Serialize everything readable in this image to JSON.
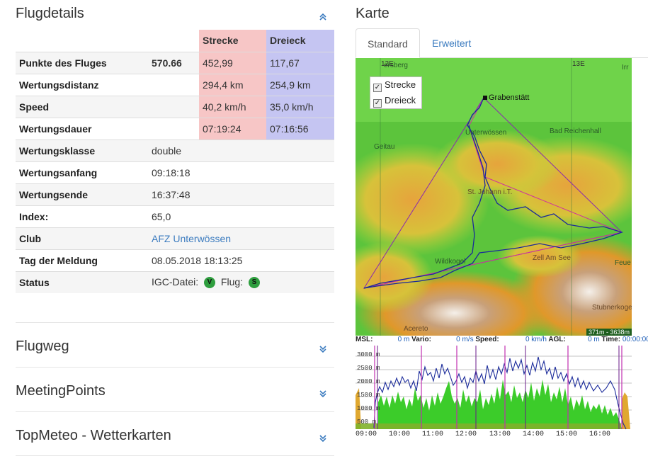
{
  "left": {
    "title": "Flugdetails",
    "table_header": {
      "strecke": "Strecke",
      "dreieck": "Dreieck"
    },
    "rows": [
      {
        "label": "Punkte des Fluges",
        "value": "570.66",
        "strecke": "452,99",
        "dreieck": "117,67"
      },
      {
        "label": "Wertungsdistanz",
        "value": "",
        "strecke": "294,4 km",
        "dreieck": "254,9 km"
      },
      {
        "label": "Speed",
        "value": "",
        "strecke": "40,2 km/h",
        "dreieck": "35,0 km/h"
      },
      {
        "label": "Wertungsdauer",
        "value": "",
        "strecke": "07:19:24",
        "dreieck": "07:16:56"
      }
    ],
    "info": [
      {
        "label": "Wertungsklasse",
        "value": "double"
      },
      {
        "label": "Wertungsanfang",
        "value": "09:18:18"
      },
      {
        "label": "Wertungsende",
        "value": "16:37:48"
      },
      {
        "label": "Index:",
        "value": "65,0"
      },
      {
        "label": "Club",
        "value": "AFZ Unterwössen"
      },
      {
        "label": "Tag der Meldung",
        "value": "08.05.2018 18:13:25"
      }
    ],
    "status": {
      "label": "Status",
      "igc_label": "IGC-Datei:",
      "igc_badge": "V",
      "flug_label": "Flug:",
      "flug_badge": "S"
    },
    "sections": [
      "Flugweg",
      "MeetingPoints",
      "TopMeteo - Wetterkarten"
    ]
  },
  "right": {
    "title": "Karte",
    "tabs": [
      "Standard",
      "Erweitert"
    ],
    "legend": [
      "Strecke",
      "Dreieck"
    ],
    "map_labels": {
      "grabenstaett": "Grabenstätt",
      "unterwoessen": "Unterwössen",
      "bad_reichenhall": "Bad Reichenhall",
      "geitau": "Geitau",
      "st_johann": "St. Johann i.T.",
      "wildkogel": "Wildkogel",
      "zell_am_see": "Zell Am See",
      "acereto": "Acereto",
      "stubnerkogel": "Stubnerkogel",
      "rosenheim_partial": "ersberg",
      "grid_12e": "12E",
      "grid_13e": "13E",
      "edge_irr": "Irr",
      "edge_feu": "Feue",
      "elevation_range": "371m - 3638m"
    },
    "barogram": {
      "msl_label": "MSL:",
      "msl_value": "0",
      "msl_unit": "m",
      "vario_label": "Vario:",
      "vario_value": "0",
      "vario_unit": "m/s",
      "speed_label": "Speed:",
      "speed_value": "0",
      "speed_unit": "km/h",
      "agl_label": "AGL:",
      "agl_value": "0",
      "agl_unit": "m",
      "time_label": "Time:",
      "time_value": "00:00:00",
      "y_ticks": [
        "3000 m",
        "2500 m",
        "2000 m",
        "1500 m",
        "1000 m",
        "500 m"
      ],
      "x_ticks": [
        "09:00",
        "10:00",
        "11:00",
        "12:00",
        "13:00",
        "14:00",
        "15:00",
        "16:00"
      ]
    }
  }
}
